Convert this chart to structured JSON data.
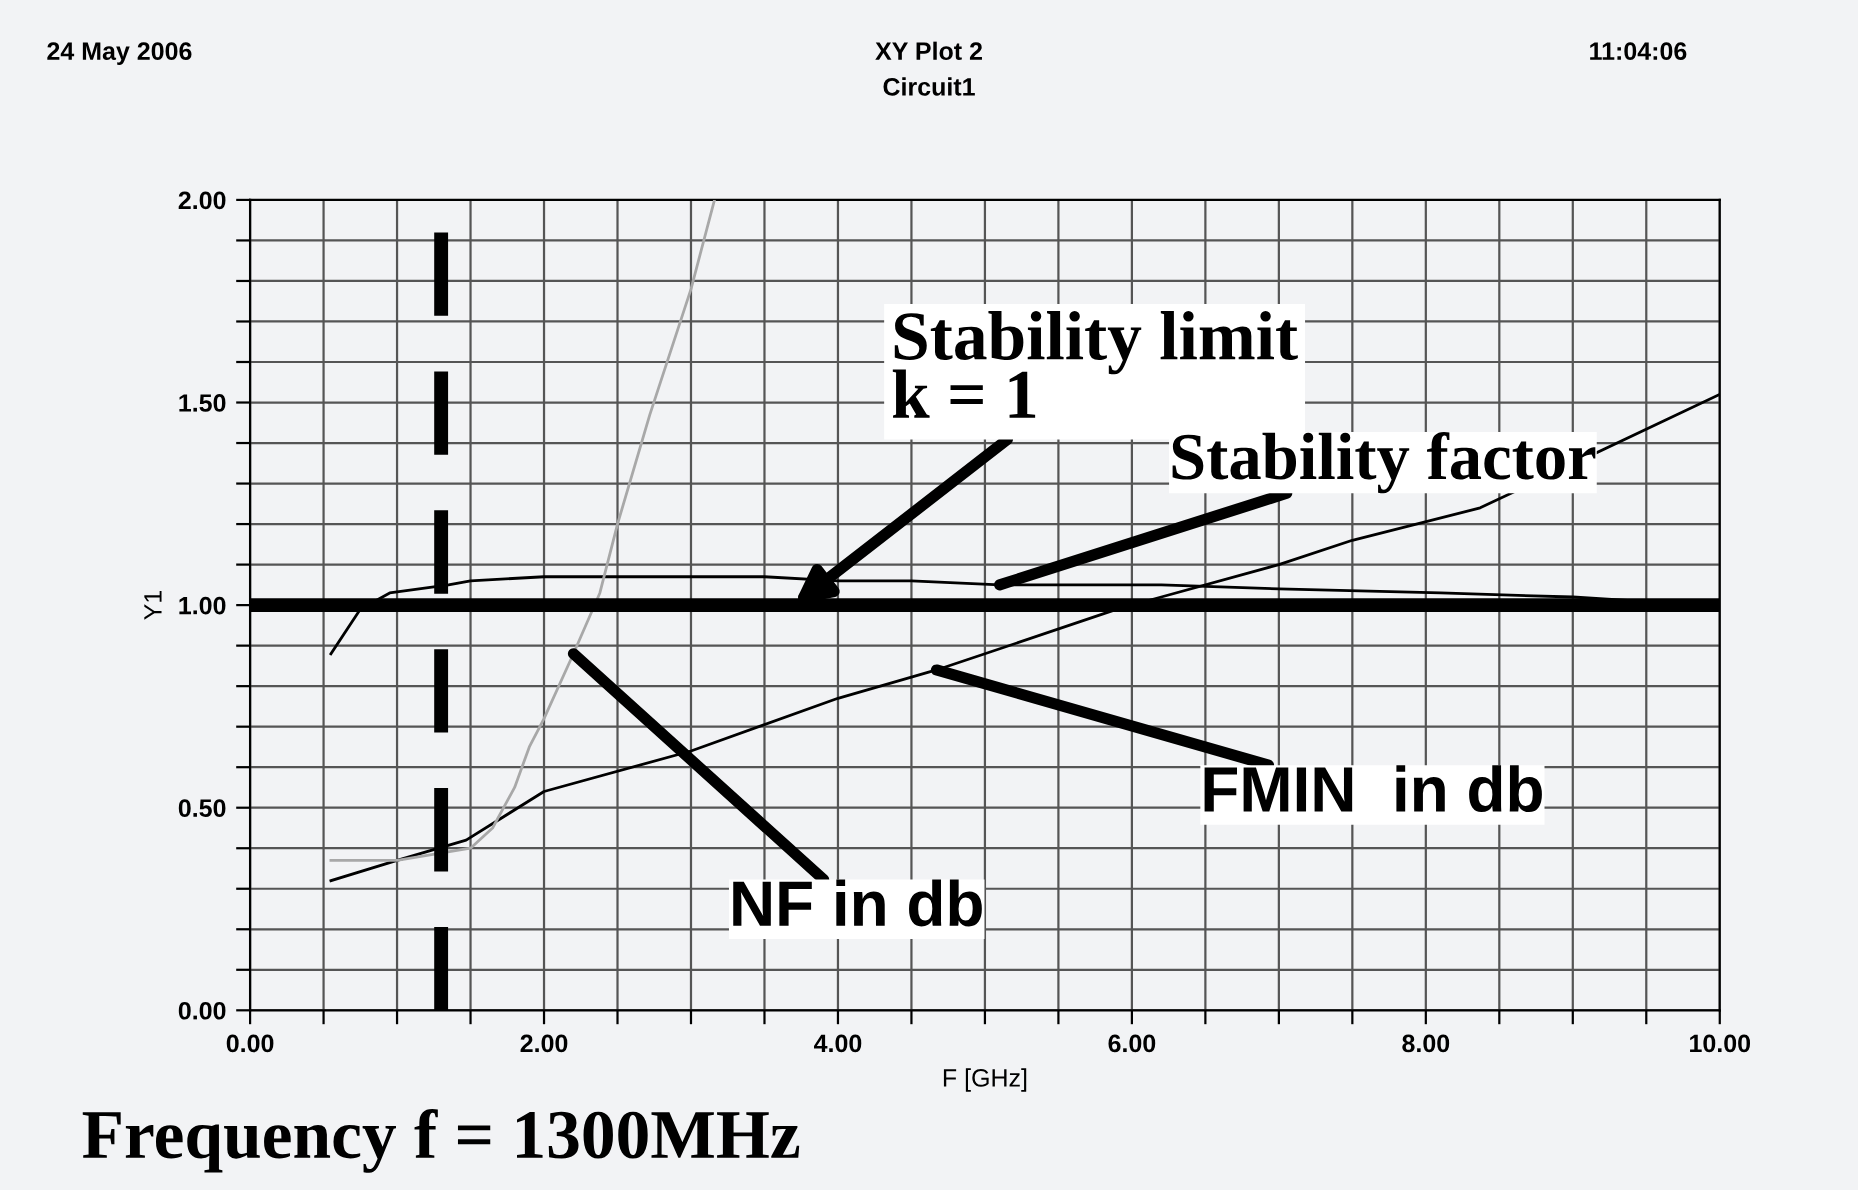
{
  "chart_data": {
    "type": "line",
    "title": "XY Plot 2",
    "subtitle": "Circuit1",
    "xlabel": "F [GHz]",
    "ylabel": "Y1",
    "series": [
      {
        "color": "#000000",
        "x": [
          0.55,
          0.75,
          0.95,
          1.35,
          1.5,
          2.0,
          2.5,
          3.06,
          3.5,
          4.0,
          4.5,
          5.1,
          5.5,
          6.2,
          7.0,
          8.1,
          9.0,
          9.45,
          10.0
        ],
        "values": [
          0.88,
          0.99,
          1.03,
          1.05,
          1.06,
          1.07,
          1.07,
          1.07,
          1.07,
          1.06,
          1.06,
          1.05,
          1.05,
          1.05,
          1.04,
          1.03,
          1.02,
          1.01,
          1.0
        ]
      },
      {
        "color": "#000000",
        "x": [
          0.55,
          1.0,
          1.47,
          2.0,
          3.0,
          4.0,
          4.67,
          5.0,
          5.9,
          6.2,
          7.0,
          7.5,
          8.37,
          10.0
        ],
        "values": [
          0.32,
          0.37,
          0.42,
          0.54,
          0.64,
          0.77,
          0.84,
          0.88,
          0.99,
          1.02,
          1.1,
          1.16,
          1.24,
          1.52
        ]
      },
      {
        "color": "#a8a8a8",
        "x": [
          0.55,
          1.0,
          1.5,
          1.65,
          1.8,
          1.9,
          2.0,
          2.2,
          2.38,
          2.5,
          2.72,
          3.0,
          3.16
        ],
        "values": [
          0.37,
          0.37,
          0.4,
          0.45,
          0.55,
          0.65,
          0.72,
          0.88,
          1.03,
          1.2,
          1.47,
          1.78,
          2.0
        ]
      }
    ],
    "xlim": [
      0,
      10
    ],
    "ylim": [
      0,
      2
    ],
    "xticks": [
      {
        "value": 0,
        "label": "0.00"
      },
      {
        "value": 0.5,
        "label": null
      },
      {
        "value": 1,
        "label": null
      },
      {
        "value": 1.5,
        "label": null
      },
      {
        "value": 2,
        "label": "2.00"
      },
      {
        "value": 2.5,
        "label": null
      },
      {
        "value": 3,
        "label": null
      },
      {
        "value": 3.5,
        "label": null
      },
      {
        "value": 4,
        "label": "4.00"
      },
      {
        "value": 4.5,
        "label": null
      },
      {
        "value": 5,
        "label": null
      },
      {
        "value": 5.5,
        "label": null
      },
      {
        "value": 6,
        "label": "6.00"
      },
      {
        "value": 6.5,
        "label": null
      },
      {
        "value": 7,
        "label": null
      },
      {
        "value": 7.5,
        "label": null
      },
      {
        "value": 8,
        "label": "8.00"
      },
      {
        "value": 8.5,
        "label": null
      },
      {
        "value": 9,
        "label": null
      },
      {
        "value": 9.5,
        "label": null
      },
      {
        "value": 10,
        "label": "10.00"
      }
    ],
    "yticks": [
      {
        "value": 0,
        "label": "0.00"
      },
      {
        "value": 0.1,
        "label": null
      },
      {
        "value": 0.2,
        "label": null
      },
      {
        "value": 0.3,
        "label": null
      },
      {
        "value": 0.4,
        "label": null
      },
      {
        "value": 0.5,
        "label": "0.50"
      },
      {
        "value": 0.6,
        "label": null
      },
      {
        "value": 0.7,
        "label": null
      },
      {
        "value": 0.8,
        "label": null
      },
      {
        "value": 0.9,
        "label": null
      },
      {
        "value": 1.0,
        "label": "1.00"
      },
      {
        "value": 1.1,
        "label": null
      },
      {
        "value": 1.2,
        "label": null
      },
      {
        "value": 1.3,
        "label": null
      },
      {
        "value": 1.4,
        "label": null
      },
      {
        "value": 1.5,
        "label": "1.50"
      },
      {
        "value": 1.6,
        "label": null
      },
      {
        "value": 1.7,
        "label": null
      },
      {
        "value": 1.8,
        "label": null
      },
      {
        "value": 1.9,
        "label": null
      },
      {
        "value": 2.0,
        "label": "2.00"
      }
    ],
    "grid": true,
    "ref_lines": [
      {
        "axis": "y",
        "value": 1.0,
        "label": "Stability limit\nk = 1",
        "color": "#000000",
        "line_style": "solid"
      },
      {
        "axis": "x",
        "value": 1.3,
        "label": "Frequency f = 1300MHz",
        "color": "#000000",
        "line_style": "dashed"
      }
    ],
    "annotations": [
      "24 May 2006",
      "11:04:06",
      {
        "text": "Stability factor",
        "x": 5.1,
        "y": 1.05
      },
      {
        "text": "NF in db",
        "x": 2.2,
        "y": 0.88
      },
      {
        "text": "FMIN  in db",
        "x": 4.67,
        "y": 0.84
      }
    ]
  }
}
